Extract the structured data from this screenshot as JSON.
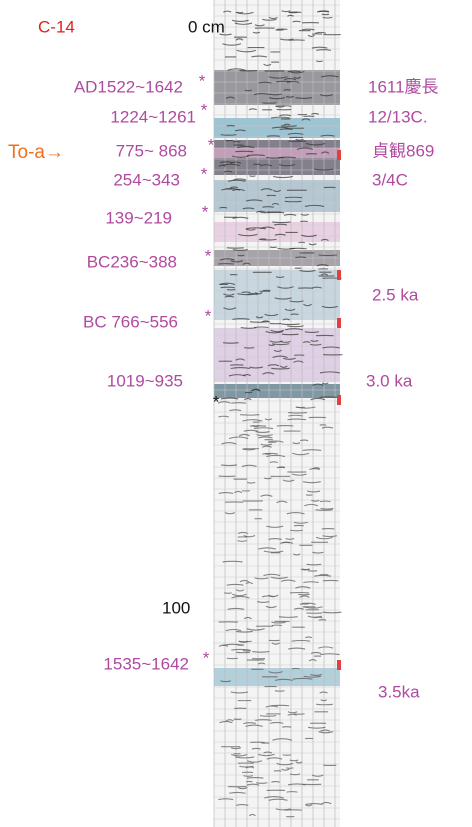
{
  "header": {
    "title": "C-14"
  },
  "depth_labels": [
    "0 cm",
    "100"
  ],
  "tephra": "To-a→",
  "dates": [
    {
      "label": "AD1522~1642",
      "marker": "*"
    },
    {
      "label": "1224~1261",
      "marker": "*"
    },
    {
      "label": "775~ 868",
      "marker": "*"
    },
    {
      "label": "254~343",
      "marker": "*"
    },
    {
      "label": "139~219",
      "marker": "*"
    },
    {
      "label": "BC236~388",
      "marker": "*"
    },
    {
      "label": "BC 766~556",
      "marker": "*"
    },
    {
      "label": "1019~935",
      "marker": "*"
    },
    {
      "label": "1535~1642",
      "marker": "*"
    }
  ],
  "right_labels": [
    "1611慶長",
    "12/13C.",
    "貞観869",
    "3/4C",
    "2.5 ka",
    "3.0 ka",
    "3.5ka"
  ]
}
